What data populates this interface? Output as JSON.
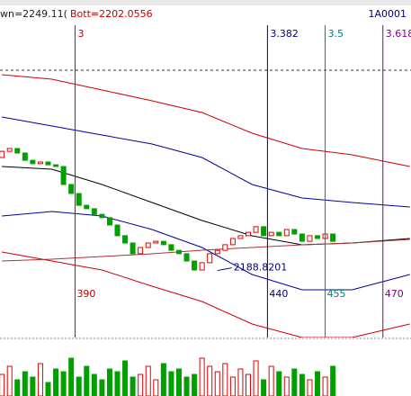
{
  "chart_data": {
    "type": "candlestick",
    "header_left": "wn=2249.11(",
    "header_bott": "Bott=2202.0556",
    "header_code": "1A0001",
    "up_color": "#e00000",
    "down_color": "#00a000",
    "xlim": [
      370.5,
      477.3
    ],
    "ylim": [
      2165,
      2285
    ],
    "volume_ylim": [
      0,
      100
    ],
    "candles": {
      "bars": [
        371,
        373,
        375,
        377,
        379,
        381,
        383,
        385,
        387,
        389,
        391,
        393,
        395,
        397,
        399,
        401,
        403,
        405,
        407,
        409,
        411,
        413,
        415,
        417,
        419,
        421,
        423,
        425,
        427,
        429,
        431,
        433,
        435,
        437,
        439,
        441,
        443,
        445,
        447,
        449,
        451,
        453,
        455,
        457
      ],
      "open": [
        2229.0,
        2231.2,
        2232.2,
        2230.6,
        2228.0,
        2226.8,
        2227.4,
        2226.4,
        2225.8,
        2219.4,
        2216.2,
        2212.0,
        2210.8,
        2208.8,
        2207.6,
        2205.0,
        2201.2,
        2198.6,
        2194.8,
        2197.0,
        2198.6,
        2199.2,
        2198.0,
        2196.0,
        2194.8,
        2192.2,
        2189.0,
        2191.6,
        2194.8,
        2196.0,
        2198.0,
        2200.2,
        2201.2,
        2202.4,
        2204.4,
        2201.2,
        2202.4,
        2201.2,
        2203.4,
        2201.8,
        2199.2,
        2201.2,
        2200.2,
        2201.8
      ],
      "close": [
        2231.2,
        2232.2,
        2230.6,
        2228.0,
        2226.8,
        2227.4,
        2226.4,
        2225.8,
        2219.4,
        2216.2,
        2212.0,
        2210.8,
        2208.8,
        2207.6,
        2205.0,
        2201.2,
        2198.6,
        2194.8,
        2197.0,
        2198.6,
        2199.2,
        2198.0,
        2196.0,
        2194.8,
        2192.2,
        2189.0,
        2191.6,
        2194.8,
        2196.0,
        2198.0,
        2200.2,
        2201.2,
        2202.4,
        2204.4,
        2201.2,
        2202.4,
        2201.2,
        2203.4,
        2201.8,
        2199.2,
        2201.2,
        2200.2,
        2201.8,
        2199.2
      ],
      "volume": [
        40,
        55,
        30,
        45,
        35,
        60,
        25,
        50,
        45,
        70,
        35,
        55,
        40,
        30,
        50,
        45,
        65,
        35,
        40,
        55,
        30,
        60,
        45,
        50,
        35,
        40,
        70,
        55,
        45,
        60,
        35,
        50,
        40,
        65,
        30,
        55,
        45,
        35,
        50,
        40,
        30,
        45,
        35,
        55
      ]
    },
    "band_bars": [
      371,
      384,
      397,
      410,
      423,
      436,
      449,
      462,
      477
    ],
    "bands": [
      {
        "color": "#d00000",
        "values": [
          2258.44,
          2256.84,
          2253.0,
          2249.16,
          2245.0,
          2237.64,
          2232.2,
          2229.96,
          2225.8
        ]
      },
      {
        "color": "#0000a0",
        "values": [
          2243.4,
          2240.2,
          2237.0,
          2233.8,
          2229.0,
          2219.4,
          2214.6,
          2213.0,
          2211.4
        ]
      },
      {
        "color": "#000000",
        "values": [
          2225.8,
          2224.84,
          2219.4,
          2213.0,
          2206.6,
          2201.16,
          2197.96,
          2198.6,
          2200.2
        ]
      },
      {
        "color": "#0000a0",
        "values": [
          2208.2,
          2209.8,
          2208.2,
          2203.4,
          2197.0,
          2187.4,
          2181.96,
          2181.96,
          2187.4
        ]
      },
      {
        "color": "#d00000",
        "values": [
          2195.4,
          2192.2,
          2189.0,
          2183.24,
          2177.8,
          2169.8,
          2165.0,
          2165.0,
          2169.8
        ]
      },
      {
        "color": "#b03030",
        "values": [
          2192.2,
          2192.84,
          2193.8,
          2194.76,
          2196.04,
          2197.0,
          2197.96,
          2198.6,
          2199.88
        ]
      }
    ],
    "dashed_level": 2260.04,
    "low": 2188.8201,
    "low_bar": 427,
    "time_lines": [
      {
        "ratio": 3,
        "bar": 390,
        "color": "#c00000"
      },
      {
        "ratio": 3.382,
        "bar": 440,
        "color": "#000080"
      },
      {
        "ratio": 3.5,
        "bar": 455,
        "color": "#008080"
      },
      {
        "ratio": 3.618,
        "bar": 470,
        "color": "#800080"
      }
    ]
  }
}
